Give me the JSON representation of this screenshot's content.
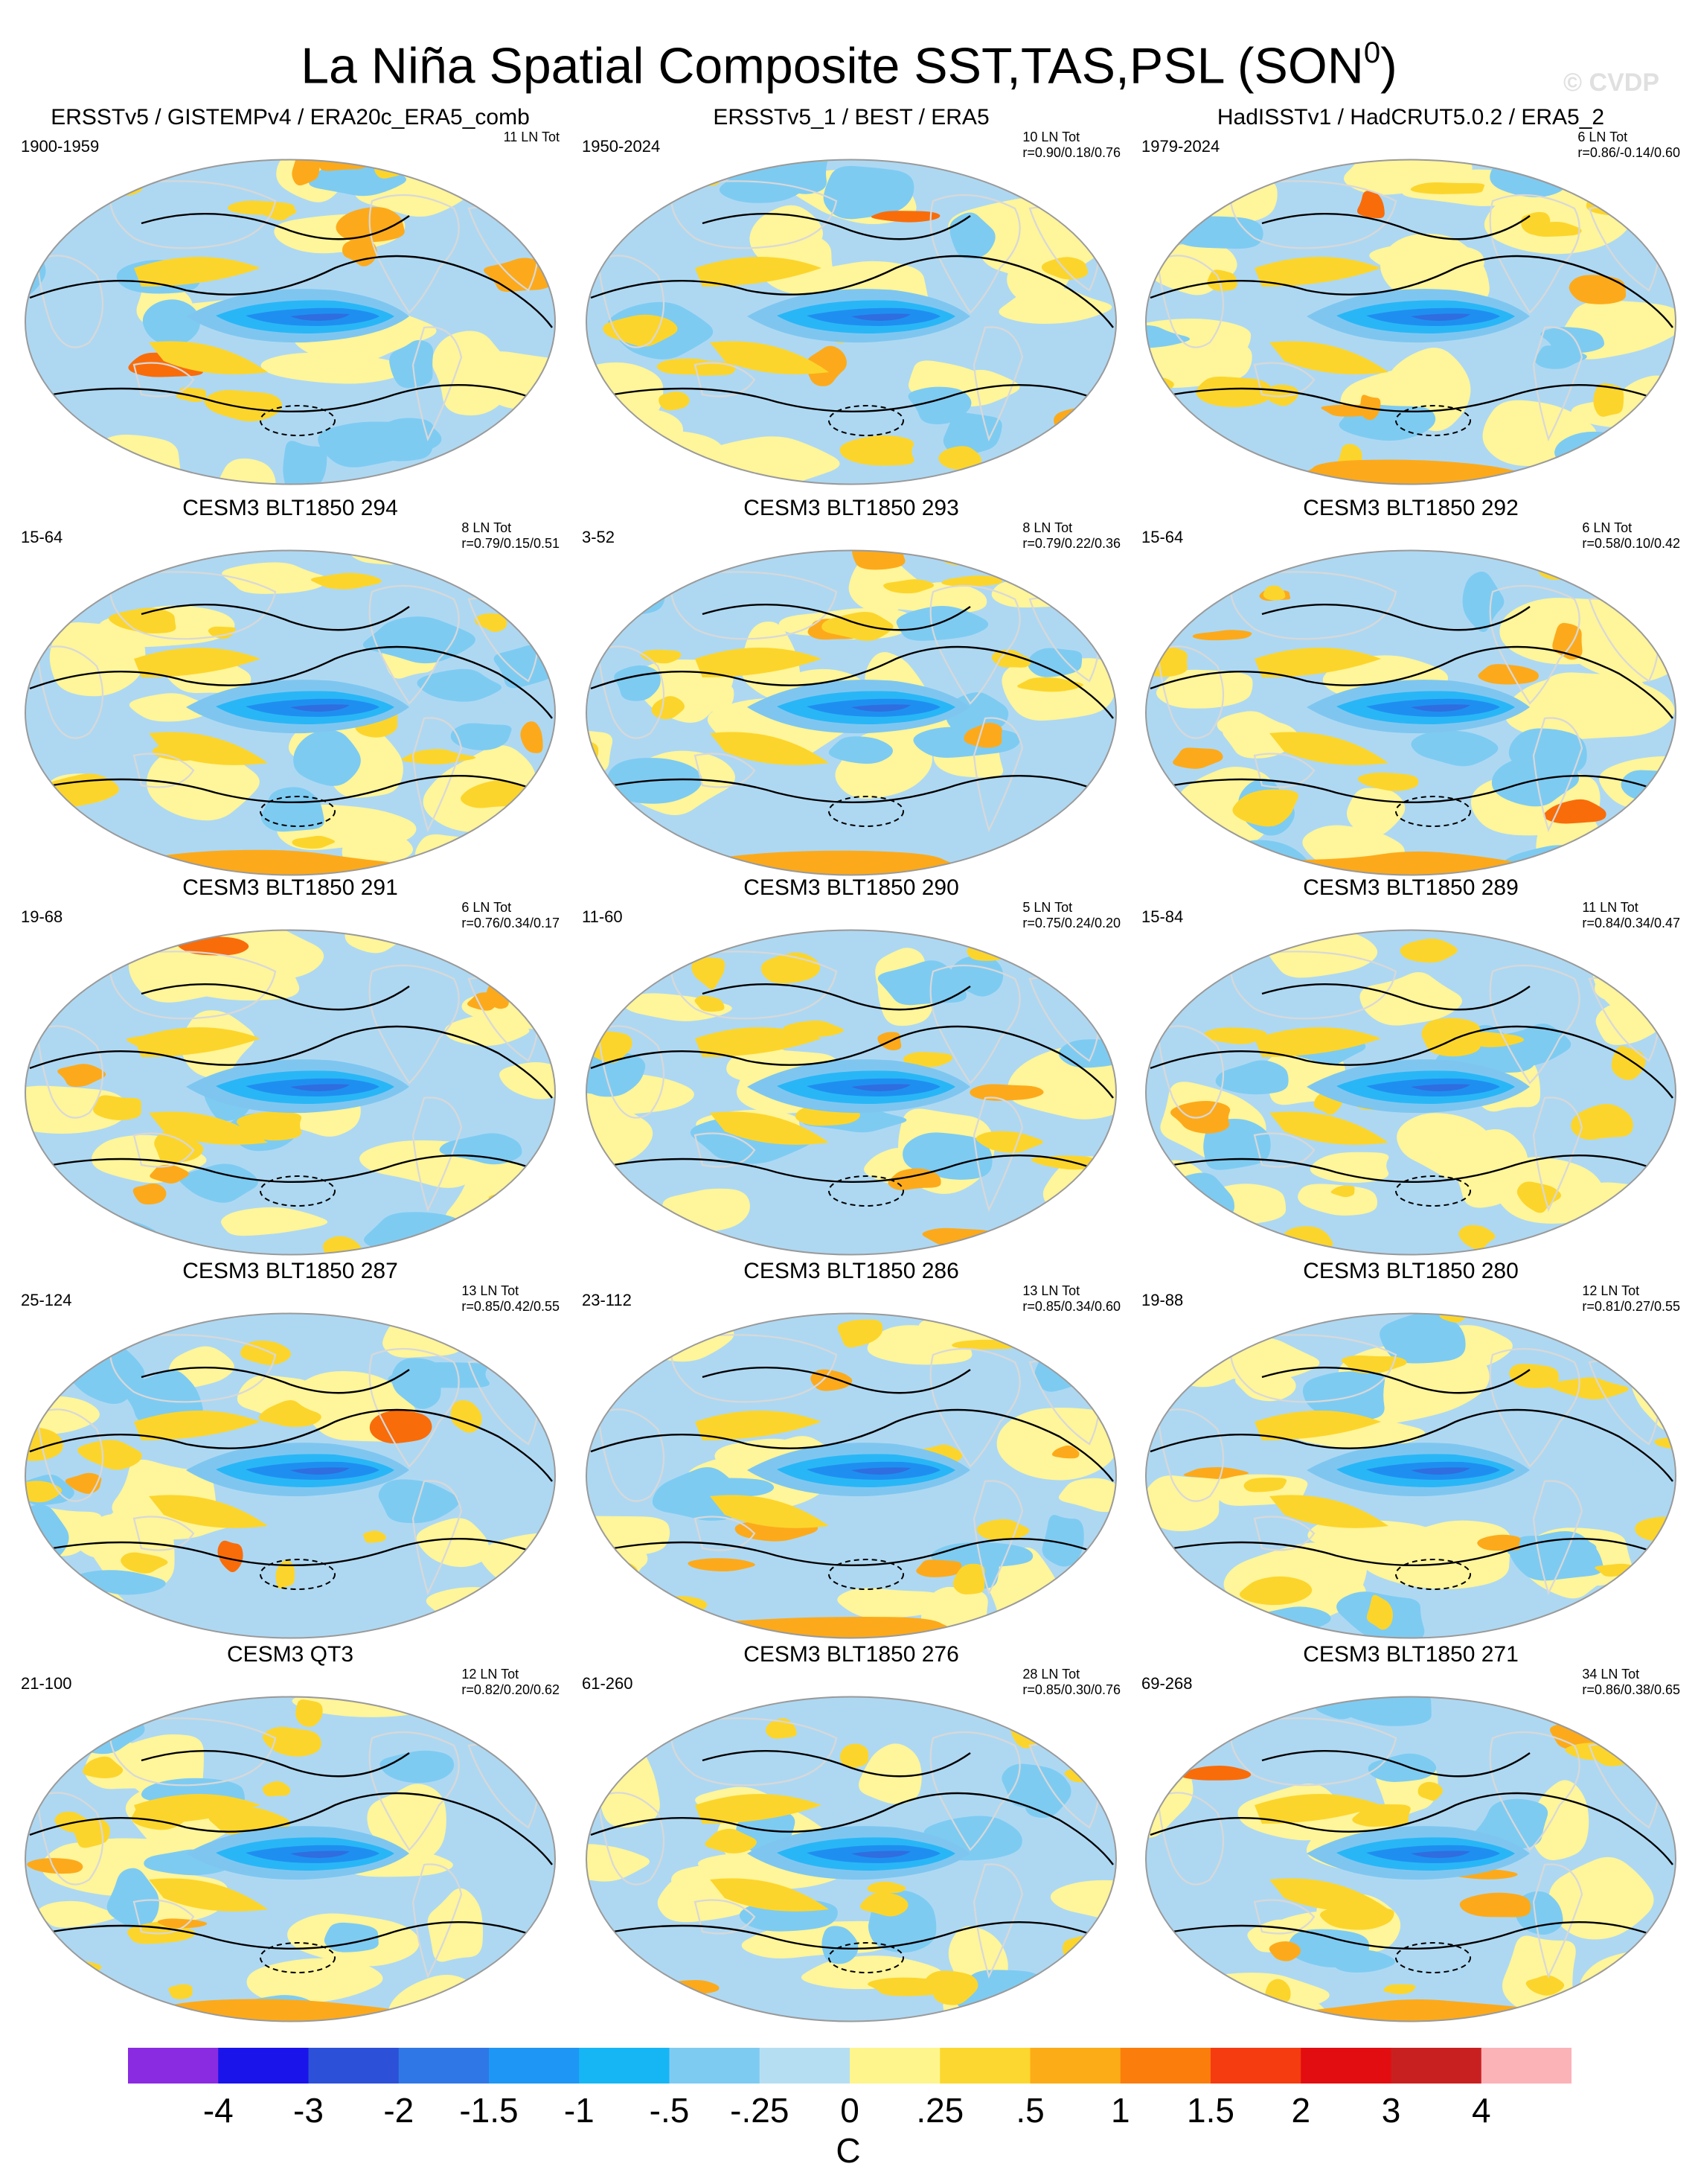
{
  "title": {
    "main": "La Niña Spatial Composite SST,TAS,PSL (SON",
    "superscript": "0",
    "close": ")"
  },
  "watermark": "© CVDP",
  "colors": {
    "ocean_base": "#aed8f2",
    "land_base": "#fff59a",
    "warm": [
      "#fcd52c",
      "#fcaa1b",
      "#f96c0a",
      "#f03b0e",
      "#d8121f"
    ],
    "cool": [
      "#7ec6f0",
      "#29b6f6",
      "#1e8ff0",
      "#2f6de0",
      "#1d37e8",
      "#7a2cf0"
    ]
  },
  "panels": [
    {
      "title": "ERSSTv5 / GISTEMPv4 / ERA20c_ERA5_comb",
      "range": "1900-1959",
      "count": "11 LN Tot",
      "stats": ""
    },
    {
      "title": "ERSSTv5_1 / BEST / ERA5",
      "range": "1950-2024",
      "count": "10 LN Tot",
      "stats": "r=0.90/0.18/0.76"
    },
    {
      "title": "HadISSTv1 / HadCRUT5.0.2 / ERA5_2",
      "range": "1979-2024",
      "count": "6 LN Tot",
      "stats": "r=0.86/-0.14/0.60"
    },
    {
      "title": "CESM3 BLT1850 294",
      "range": "15-64",
      "count": "8 LN Tot",
      "stats": "r=0.79/0.15/0.51"
    },
    {
      "title": "CESM3 BLT1850 293",
      "range": "3-52",
      "count": "8 LN Tot",
      "stats": "r=0.79/0.22/0.36"
    },
    {
      "title": "CESM3 BLT1850 292",
      "range": "15-64",
      "count": "6 LN Tot",
      "stats": "r=0.58/0.10/0.42"
    },
    {
      "title": "CESM3 BLT1850 291",
      "range": "19-68",
      "count": "6 LN Tot",
      "stats": "r=0.76/0.34/0.17"
    },
    {
      "title": "CESM3 BLT1850 290",
      "range": "11-60",
      "count": "5 LN Tot",
      "stats": "r=0.75/0.24/0.20"
    },
    {
      "title": "CESM3 BLT1850 289",
      "range": "15-84",
      "count": "11 LN Tot",
      "stats": "r=0.84/0.34/0.47"
    },
    {
      "title": "CESM3 BLT1850 287",
      "range": "25-124",
      "count": "13 LN Tot",
      "stats": "r=0.85/0.42/0.55"
    },
    {
      "title": "CESM3 BLT1850 286",
      "range": "23-112",
      "count": "13 LN Tot",
      "stats": "r=0.85/0.34/0.60"
    },
    {
      "title": "CESM3 BLT1850 280",
      "range": "19-88",
      "count": "12 LN Tot",
      "stats": "r=0.81/0.27/0.55"
    },
    {
      "title": "CESM3 QT3",
      "range": "21-100",
      "count": "12 LN Tot",
      "stats": "r=0.82/0.20/0.62"
    },
    {
      "title": "CESM3 BLT1850 276",
      "range": "61-260",
      "count": "28 LN Tot",
      "stats": "r=0.85/0.30/0.76"
    },
    {
      "title": "CESM3 BLT1850 271",
      "range": "69-268",
      "count": "34 LN Tot",
      "stats": "r=0.86/0.38/0.65"
    }
  ],
  "colorbar": {
    "colors": [
      "#8a2be2",
      "#1a14ea",
      "#2d50d8",
      "#2f77e6",
      "#1e96f5",
      "#16b6f5",
      "#7ecbf2",
      "#b6def3",
      "#fef58c",
      "#fcd72f",
      "#fcac17",
      "#fb7d0c",
      "#f53b10",
      "#e20d10",
      "#c82020",
      "#fbb3b8"
    ],
    "labels": [
      "-4",
      "-3",
      "-2",
      "-1.5",
      "-1",
      "-.5",
      "-.25",
      "0",
      ".25",
      ".5",
      "1",
      "1.5",
      "2",
      "3",
      "4"
    ],
    "units": "C"
  }
}
